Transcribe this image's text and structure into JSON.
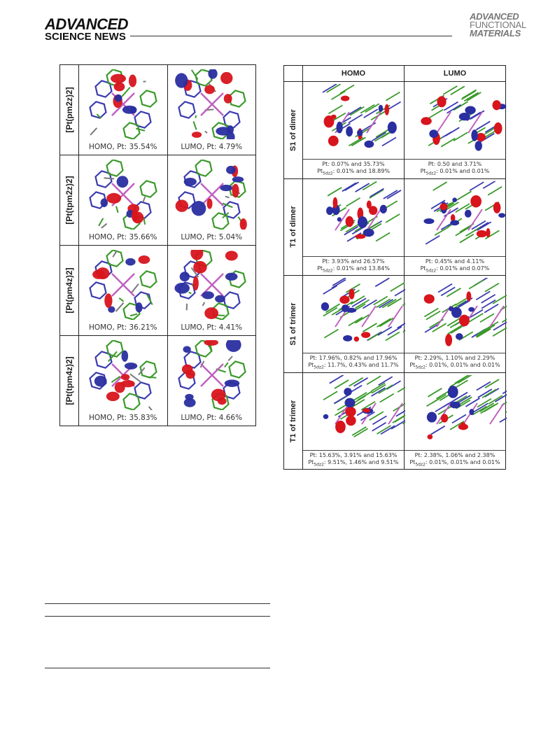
{
  "header": {
    "left_brand_top": "ADVANCED",
    "left_brand_bottom": "SCIENCE NEWS",
    "right_brand_line1": "ADVANCED",
    "right_brand_line2": "FUNCTIONAL",
    "right_brand_line3": "MATERIALS"
  },
  "left_table": {
    "rows": [
      {
        "label": "[Pt(pm2z)2]",
        "homo": "HOMO, Pt: 35.54%",
        "lumo": "LUMO, Pt: 4.79%"
      },
      {
        "label": "[Pt(tpm2z)2]",
        "homo": "HOMO, Pt: 35.66%",
        "lumo": "LUMO, Pt: 5.04%"
      },
      {
        "label": "[Pt(pm4z)2]",
        "homo": "HOMO, Pt: 36.21%",
        "lumo": "LUMO, Pt: 4.41%"
      },
      {
        "label": "[Pt(tpm4z)2]",
        "homo": "HOMO, Pt: 35.83%",
        "lumo": "LUMO, Pt: 4.66%"
      }
    ]
  },
  "right_table": {
    "col_homo": "HOMO",
    "col_lumo": "LUMO",
    "rows": [
      {
        "label": "S1 of dimer",
        "homo_l1": "Pt: 0.07% and 35.73%",
        "homo_l2": ": 0.01% and 18.89%",
        "lumo_l1": "Pt: 0.50 and 3.71%",
        "lumo_l2": ": 0.01% and 0.01%"
      },
      {
        "label": "T1 of dimer",
        "homo_l1": "Pt: 3.93% and 26.57%",
        "homo_l2": ": 0.01% and 13.84%",
        "lumo_l1": "Pt: 0.45% and 4.11%",
        "lumo_l2": ": 0.01% and 0.07%"
      },
      {
        "label": "S1 of trimer",
        "homo_l1": "Pt: 17.96%, 0.82% and 17.96%",
        "homo_l2": ": 11.7%, 0.43% and 11.7%",
        "lumo_l1": "Pt: 2.29%, 1.10% and 2.29%",
        "lumo_l2": ": 0.01%, 0.01% and 0.01%"
      },
      {
        "label": "T1 of trimer",
        "homo_l1": "Pt: 15.63%, 3.91% and 15.63%",
        "homo_l2": ": 9.51%, 1.46% and 9.51%",
        "lumo_l1": "Pt: 2.38%, 1.06% and 2.38%",
        "lumo_l2": ": 0.01%, 0.01% and 0.01%"
      }
    ],
    "pt5dz2_prefix": "Pt",
    "pt5dz2_sub": "5dz2"
  },
  "colors": {
    "lobe_red": "#d8141c",
    "lobe_blue": "#2a2ea0",
    "bond_green": "#3a9a2a",
    "metal": "#c060c0"
  }
}
